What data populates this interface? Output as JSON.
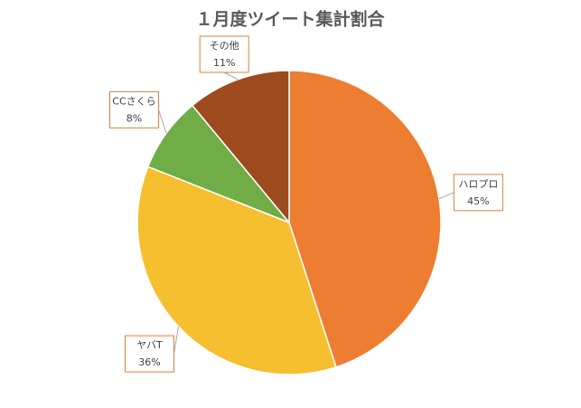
{
  "chart_data": {
    "type": "pie",
    "title": "１月度ツイート集計割合",
    "categories": [
      "ハロプロ",
      "ヤバT",
      "CCさくら",
      "その他"
    ],
    "values": [
      45,
      36,
      8,
      11
    ],
    "value_labels": [
      "45%",
      "36%",
      "8%",
      "11%"
    ],
    "colors": [
      "#ed7d31",
      "#f6bf2f",
      "#70ad47",
      "#9e4a1f"
    ]
  }
}
